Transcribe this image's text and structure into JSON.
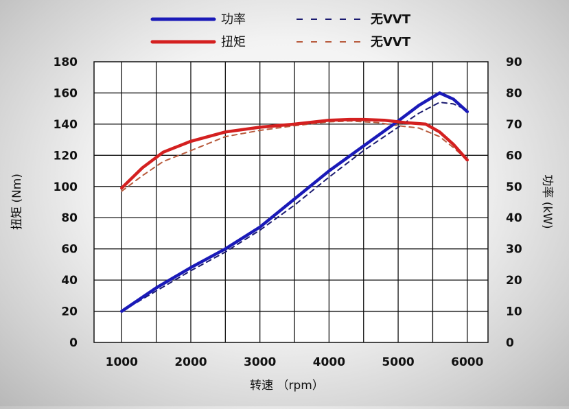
{
  "chart_data": {
    "type": "line",
    "xlabel": "转速 （rpm）",
    "ylabel_left": "扭矩 (Nm)",
    "ylabel_right": "功率 (kW)",
    "xlim": [
      600,
      6300
    ],
    "xticks": [
      1000,
      2000,
      3000,
      4000,
      5000,
      6000
    ],
    "ylim_left": [
      0,
      180
    ],
    "yticks_left": [
      0,
      20,
      40,
      60,
      80,
      100,
      120,
      140,
      160,
      180
    ],
    "ylim_right": [
      0,
      90
    ],
    "yticks_right": [
      0,
      10,
      20,
      30,
      40,
      50,
      60,
      70,
      80,
      90
    ],
    "grid": true,
    "legend_placement": "top",
    "series": [
      {
        "name": "功率",
        "axis": "right",
        "color": "#1a1ab8",
        "style": "solid",
        "x": [
          1000,
          1500,
          2000,
          2500,
          3000,
          3500,
          4000,
          4500,
          5000,
          5300,
          5600,
          5800,
          6000
        ],
        "y": [
          10,
          17.5,
          24,
          30,
          37,
          46,
          55,
          63,
          71,
          76,
          80,
          78,
          74
        ]
      },
      {
        "name": "无VVT",
        "axis": "right",
        "color": "#1a1a70",
        "style": "dashed",
        "x": [
          1000,
          1500,
          2000,
          2500,
          3000,
          3500,
          4000,
          4500,
          5000,
          5300,
          5600,
          5800,
          6000
        ],
        "y": [
          10,
          16.5,
          23,
          29,
          36,
          44,
          53,
          61.5,
          69,
          73.5,
          77,
          76.5,
          74.5
        ]
      },
      {
        "name": "扭矩",
        "axis": "left",
        "color": "#d42020",
        "style": "solid",
        "x": [
          1000,
          1300,
          1600,
          2000,
          2500,
          3000,
          3500,
          4000,
          4300,
          4500,
          4800,
          5100,
          5400,
          5600,
          5800,
          6000
        ],
        "y": [
          99,
          112,
          122,
          129,
          135,
          138,
          140,
          142.5,
          143,
          143,
          142.5,
          141,
          140,
          135,
          127,
          117
        ]
      },
      {
        "name": "无VVT",
        "axis": "left",
        "color": "#b85a3c",
        "style": "dashed",
        "x": [
          1000,
          1300,
          1600,
          2000,
          2500,
          3000,
          3500,
          4000,
          4300,
          4700,
          5000,
          5300,
          5600,
          5800,
          6000
        ],
        "y": [
          97,
          107,
          116,
          123,
          132,
          136,
          139,
          141.5,
          142,
          141,
          139,
          137.5,
          132,
          125,
          117
        ]
      }
    ]
  }
}
